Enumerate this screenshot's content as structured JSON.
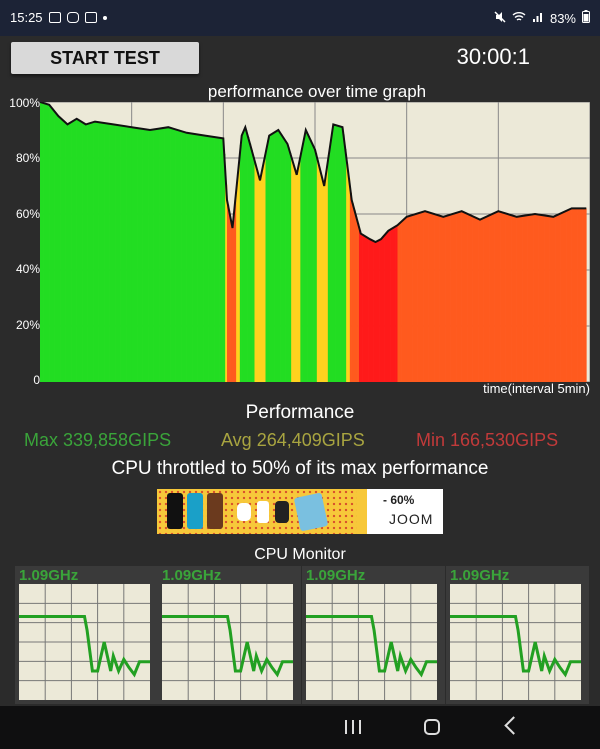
{
  "status_bar": {
    "time": "15:25",
    "battery": "83%",
    "left_icons": [
      "youtube-icon",
      "instagram-icon",
      "gallery-icon",
      "dot-icon"
    ],
    "right_icons": [
      "mute-icon",
      "wifi-icon",
      "signal-icon"
    ]
  },
  "controls": {
    "start_label": "START TEST",
    "timer": "30:00:1"
  },
  "chart_data": {
    "type": "area",
    "title": "performance over time graph",
    "xlabel": "time(interval 5min)",
    "ylabel": "",
    "yticks": [
      "100%",
      "80%",
      "60%",
      "40%",
      "20%",
      "0"
    ],
    "ylim": [
      0,
      100
    ],
    "xlim": [
      0,
      30
    ],
    "grid": true,
    "x": [
      0,
      0.5,
      1,
      1.5,
      2,
      2.5,
      3,
      4,
      5,
      6,
      7,
      8,
      9,
      10,
      10.2,
      10.5,
      11,
      11.2,
      11.5,
      12,
      12.5,
      13,
      13.5,
      14,
      14.5,
      15,
      15.5,
      16,
      16.5,
      17,
      17.5,
      18,
      18.3,
      18.6,
      19,
      19.5,
      20,
      21,
      22,
      23,
      24,
      25,
      26,
      27,
      28,
      29,
      29.8
    ],
    "values": [
      100,
      99,
      95,
      92,
      94,
      92,
      93,
      92,
      91,
      90,
      91,
      89,
      88,
      87,
      65,
      55,
      88,
      91,
      84,
      72,
      88,
      90,
      85,
      74,
      90,
      83,
      70,
      92,
      91,
      65,
      53,
      51,
      50,
      51,
      54,
      56,
      59,
      61,
      59,
      61,
      58,
      61,
      59,
      60,
      59,
      62,
      62
    ]
  },
  "performance": {
    "heading": "Performance",
    "max": "Max 339,858GIPS",
    "avg": "Avg 264,409GIPS",
    "min": "Min 166,530GIPS",
    "throttle": "CPU throttled to 50% of its max performance"
  },
  "ad": {
    "discount": "- 60%",
    "brand": "JOOM"
  },
  "cpu_monitor": {
    "title": "CPU Monitor",
    "cores": [
      {
        "freq": "1.09GHz"
      },
      {
        "freq": "1.09GHz"
      },
      {
        "freq": "1.09GHz"
      },
      {
        "freq": "1.09GHz"
      }
    ],
    "trace": {
      "x": [
        0,
        0.5,
        0.52,
        0.56,
        0.6,
        0.65,
        0.7,
        0.72,
        0.76,
        0.8,
        0.84,
        0.88,
        0.92,
        0.96,
        1.0
      ],
      "values": [
        0.72,
        0.72,
        0.6,
        0.25,
        0.25,
        0.5,
        0.25,
        0.38,
        0.25,
        0.35,
        0.28,
        0.22,
        0.33,
        0.33,
        0.33
      ]
    }
  },
  "colors": {
    "high": "#22dd22",
    "mid": "#ffd21e",
    "low": "#ff5a1e",
    "critical": "#ff1a1a",
    "graph_bg": "#ece9d8",
    "cpu_line": "#22a022"
  }
}
